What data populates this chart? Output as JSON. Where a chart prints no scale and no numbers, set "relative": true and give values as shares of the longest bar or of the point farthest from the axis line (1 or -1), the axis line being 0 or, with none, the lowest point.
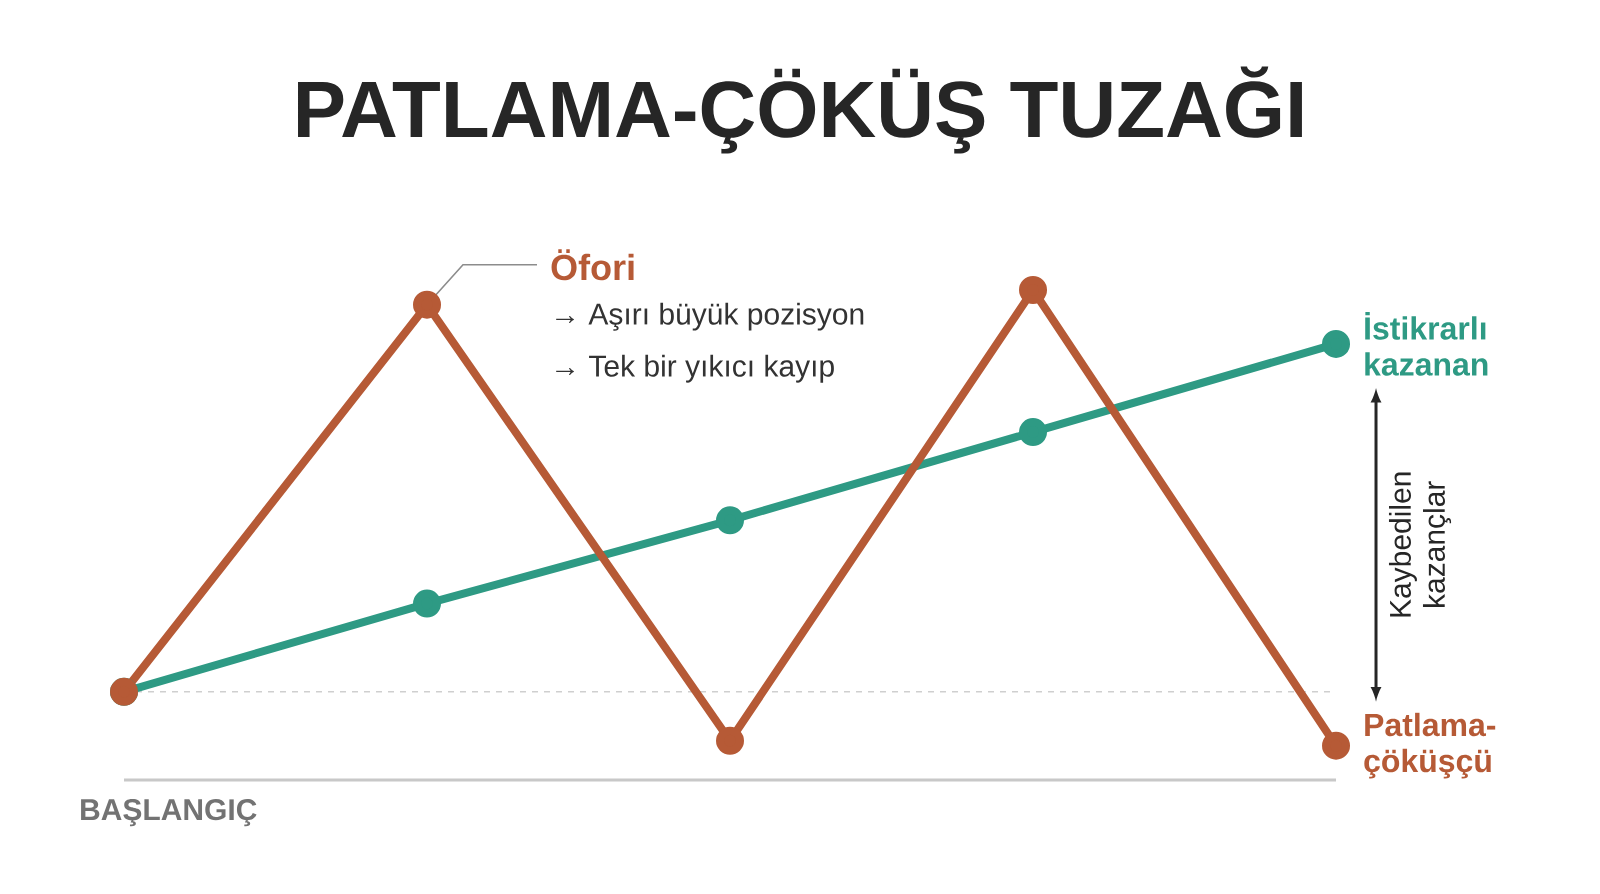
{
  "chart_data": {
    "type": "line",
    "title": "PATLAMA-ÇÖKÜŞ TUZAĞI",
    "relative": true,
    "categories": [
      null,
      null,
      null,
      null,
      null
    ],
    "series": [
      {
        "name": "İstikrarlı kazanan",
        "color": "#2e9a84",
        "values": [
          0.18,
          0.36,
          0.53,
          0.71,
          0.89
        ]
      },
      {
        "name": "Patlama-çöküşçü",
        "color": "#b65a36",
        "values": [
          0.18,
          0.97,
          0.08,
          1.0,
          0.07
        ]
      }
    ],
    "marker": "circle",
    "line_style": "solid",
    "ref_lines": [
      {
        "axis": "y",
        "value": 0,
        "label": "BAŞLANGIÇ",
        "color": "#c8c8c8",
        "line_style": "solid"
      },
      {
        "axis": "y",
        "value": 0.18,
        "label": null,
        "color": "#cfcfcf",
        "line_style": "dashed"
      }
    ],
    "annotations": [
      "Öfori",
      "→ Aşırı büyük pozisyon",
      "→ Tek bir yıkıcı kayıp",
      "Kaybedilen kazançlar"
    ]
  }
}
